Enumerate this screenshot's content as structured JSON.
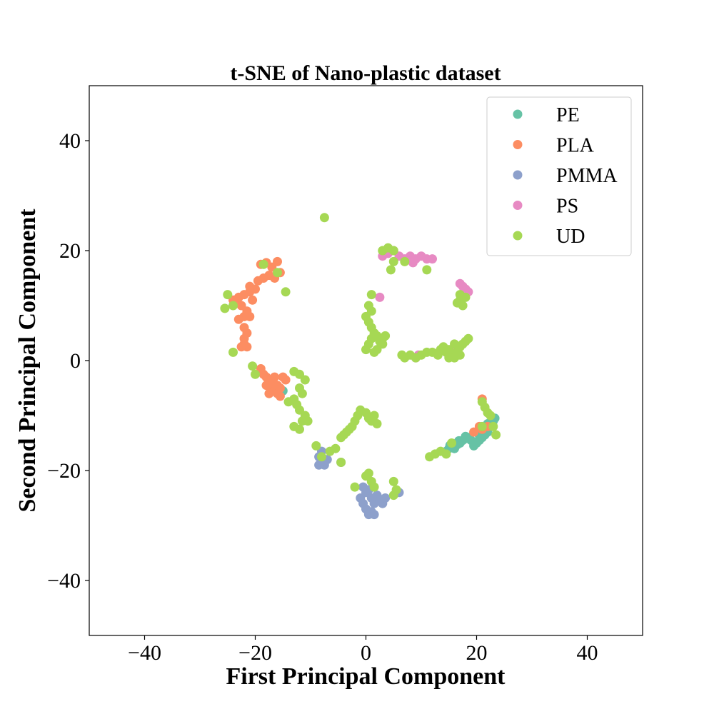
{
  "chart_data": {
    "type": "scatter",
    "title": "t-SNE of Nano-plastic dataset",
    "xlabel": "First Principal Component",
    "ylabel": "Second Principal Component",
    "xlim": [
      -50,
      50
    ],
    "ylim": [
      -50,
      50
    ],
    "xticks": [
      -40,
      -20,
      0,
      20,
      40
    ],
    "yticks": [
      -40,
      -20,
      0,
      20,
      40
    ],
    "grid": false,
    "legend_position": "top-right",
    "series": [
      {
        "name": "PE",
        "color": "#66c2a5",
        "points": [
          [
            15,
            -16
          ],
          [
            15.5,
            -15.8
          ],
          [
            16,
            -15.5
          ],
          [
            16.5,
            -15.3
          ],
          [
            17,
            -15
          ],
          [
            17.5,
            -14.5
          ],
          [
            18,
            -14.2
          ],
          [
            18.5,
            -14
          ],
          [
            19,
            -14.5
          ],
          [
            19.5,
            -14.8
          ],
          [
            20,
            -15
          ],
          [
            20.5,
            -14.5
          ],
          [
            21,
            -14
          ],
          [
            21.5,
            -13.5
          ],
          [
            22,
            -13
          ],
          [
            22.5,
            -12
          ],
          [
            23,
            -11
          ],
          [
            23.3,
            -10.5
          ],
          [
            14.5,
            -16.5
          ],
          [
            16,
            -16
          ],
          [
            17,
            -14.8
          ],
          [
            18,
            -13.8
          ],
          [
            19.5,
            -15.5
          ],
          [
            20.5,
            -13.6
          ],
          [
            15.2,
            -15.4
          ],
          [
            16.8,
            -14.6
          ],
          [
            22,
            -11.5
          ],
          [
            22.8,
            -11.2
          ],
          [
            -15.5,
            -6
          ],
          [
            -16,
            -5
          ],
          [
            -15,
            -5.5
          ]
        ]
      },
      {
        "name": "PLA",
        "color": "#fc8d62",
        "points": [
          [
            -19,
            17.5
          ],
          [
            -18,
            17.8
          ],
          [
            -17,
            17
          ],
          [
            -16,
            18
          ],
          [
            -15.5,
            16
          ],
          [
            -16.5,
            15
          ],
          [
            -17.5,
            15.5
          ],
          [
            -18.5,
            15
          ],
          [
            -19.5,
            14.5
          ],
          [
            -20,
            13
          ],
          [
            -21,
            12.5
          ],
          [
            -22,
            12
          ],
          [
            -23,
            11.5
          ],
          [
            -23.5,
            10.5
          ],
          [
            -24,
            11
          ],
          [
            -22.5,
            10
          ],
          [
            -21.5,
            9
          ],
          [
            -22,
            8
          ],
          [
            -23,
            7.5
          ],
          [
            -21,
            8
          ],
          [
            -22,
            6
          ],
          [
            -21.5,
            5
          ],
          [
            -22,
            4
          ],
          [
            -22,
            3
          ],
          [
            -21.5,
            2.5
          ],
          [
            -22.5,
            2.5
          ],
          [
            -20.5,
            11
          ],
          [
            -21,
            13.5
          ],
          [
            -19,
            -1.5
          ],
          [
            -18.5,
            -2.5
          ],
          [
            -18,
            -3
          ],
          [
            -17.5,
            -4
          ],
          [
            -17,
            -5
          ],
          [
            -16.5,
            -5.5
          ],
          [
            -16,
            -6
          ],
          [
            -15.5,
            -5
          ],
          [
            -17,
            -3.5
          ],
          [
            -16,
            -4.5
          ],
          [
            -15,
            -3
          ],
          [
            -14.5,
            -3.5
          ],
          [
            -18,
            -4.5
          ],
          [
            -17.5,
            -6
          ],
          [
            -16.5,
            -3
          ],
          [
            -15.5,
            -6.5
          ],
          [
            21,
            -7
          ],
          [
            20.5,
            -12
          ],
          [
            21,
            -12.5
          ],
          [
            22,
            -12
          ],
          [
            19.5,
            -13
          ]
        ]
      },
      {
        "name": "PMMA",
        "color": "#8da0cb",
        "points": [
          [
            -8,
            -16.5
          ],
          [
            -8.5,
            -17.5
          ],
          [
            -8,
            -18.5
          ],
          [
            -7.5,
            -19
          ],
          [
            -8.5,
            -19
          ],
          [
            -7,
            -18
          ],
          [
            -4.5,
            -18.5
          ],
          [
            -1,
            -25
          ],
          [
            -0.5,
            -26
          ],
          [
            0,
            -24
          ],
          [
            0.5,
            -23.5
          ],
          [
            1,
            -25
          ],
          [
            1.5,
            -26
          ],
          [
            2,
            -24.5
          ],
          [
            2.5,
            -25.5
          ],
          [
            3,
            -26
          ],
          [
            0,
            -27
          ],
          [
            1,
            -27.5
          ],
          [
            0.5,
            -28
          ],
          [
            1.5,
            -28
          ],
          [
            -0.5,
            -23
          ],
          [
            3.5,
            -25
          ],
          [
            6,
            -24
          ]
        ]
      },
      {
        "name": "PS",
        "color": "#e78ac3",
        "points": [
          [
            3,
            19
          ],
          [
            4,
            19.5
          ],
          [
            5,
            20
          ],
          [
            6,
            19
          ],
          [
            7,
            18.5
          ],
          [
            8,
            19
          ],
          [
            9,
            18.5
          ],
          [
            10,
            19
          ],
          [
            11,
            18.5
          ],
          [
            12,
            18.5
          ],
          [
            8.5,
            17.8
          ],
          [
            17,
            14
          ],
          [
            17.5,
            13.5
          ],
          [
            18,
            13
          ],
          [
            18.5,
            12.5
          ],
          [
            17.5,
            12
          ],
          [
            2.5,
            11.5
          ],
          [
            9,
            0.5
          ],
          [
            9.5,
            1
          ],
          [
            16,
            2
          ]
        ]
      },
      {
        "name": "UD",
        "color": "#a6d854",
        "points": [
          [
            -7.5,
            26
          ],
          [
            -25,
            12
          ],
          [
            -25.5,
            9.5
          ],
          [
            -24,
            10
          ],
          [
            -18.5,
            17.5
          ],
          [
            -16,
            16
          ],
          [
            -14.5,
            12.5
          ],
          [
            -24,
            1.5
          ],
          [
            -20.5,
            -1
          ],
          [
            -20,
            -2.5
          ],
          [
            -13,
            -2
          ],
          [
            -12,
            -2.5
          ],
          [
            -11,
            -3.5
          ],
          [
            -12,
            -5
          ],
          [
            -11.5,
            -6
          ],
          [
            -13,
            -7
          ],
          [
            -12.5,
            -8
          ],
          [
            -12,
            -9
          ],
          [
            -11,
            -10
          ],
          [
            -11.5,
            -11
          ],
          [
            -13,
            -12
          ],
          [
            -12,
            -12.5
          ],
          [
            -14,
            -7.5
          ],
          [
            -10.5,
            -11
          ],
          [
            -9,
            -15.5
          ],
          [
            -8,
            -17.5
          ],
          [
            -6.5,
            -16.5
          ],
          [
            -5.5,
            -16
          ],
          [
            -4.5,
            -14
          ],
          [
            -4,
            -13.5
          ],
          [
            -3.5,
            -13
          ],
          [
            -3,
            -12.5
          ],
          [
            -2.5,
            -12
          ],
          [
            -2,
            -11
          ],
          [
            -1.5,
            -10
          ],
          [
            -1,
            -9
          ],
          [
            0,
            -9.5
          ],
          [
            0.5,
            -10.5
          ],
          [
            1,
            -11
          ],
          [
            1.5,
            -10
          ],
          [
            2,
            -11.5
          ],
          [
            -4.5,
            -18.5
          ],
          [
            -2,
            -23
          ],
          [
            0,
            -21
          ],
          [
            0.5,
            -20.5
          ],
          [
            1,
            -22
          ],
          [
            1.5,
            -23
          ],
          [
            5,
            -22
          ],
          [
            5.5,
            -23.5
          ],
          [
            5,
            -24.5
          ],
          [
            0,
            2
          ],
          [
            0.5,
            3
          ],
          [
            1,
            4
          ],
          [
            1.5,
            5
          ],
          [
            2,
            4.5
          ],
          [
            2.5,
            3.5
          ],
          [
            3,
            4
          ],
          [
            1,
            6
          ],
          [
            0.5,
            7
          ],
          [
            0,
            8
          ],
          [
            1,
            9
          ],
          [
            0.5,
            10
          ],
          [
            1,
            12
          ],
          [
            2,
            2
          ],
          [
            3,
            3
          ],
          [
            3.5,
            4.5
          ],
          [
            1.5,
            1.5
          ],
          [
            3,
            20
          ],
          [
            4,
            20.5
          ],
          [
            5,
            20
          ],
          [
            5,
            18
          ],
          [
            4.5,
            16.5
          ],
          [
            7,
            18
          ],
          [
            11,
            16.5
          ],
          [
            6.5,
            1
          ],
          [
            7,
            0.5
          ],
          [
            8,
            1
          ],
          [
            9,
            0.5
          ],
          [
            10,
            1
          ],
          [
            11,
            1.5
          ],
          [
            12,
            1.5
          ],
          [
            13,
            1
          ],
          [
            13.5,
            2
          ],
          [
            14,
            2.5
          ],
          [
            14.5,
            1.5
          ],
          [
            15,
            2
          ],
          [
            15.5,
            1
          ],
          [
            16,
            0.5
          ],
          [
            16.5,
            1.5
          ],
          [
            17,
            2.5
          ],
          [
            17.5,
            3
          ],
          [
            18,
            3.5
          ],
          [
            18.5,
            4
          ],
          [
            16,
            3
          ],
          [
            17,
            1
          ],
          [
            15,
            0.5
          ],
          [
            16.5,
            10.5
          ],
          [
            17,
            11
          ],
          [
            17.5,
            10
          ],
          [
            18,
            11.5
          ],
          [
            17,
            12
          ],
          [
            11.5,
            -17.5
          ],
          [
            12.5,
            -17
          ],
          [
            13.5,
            -16.5
          ],
          [
            14.5,
            -17
          ],
          [
            15.5,
            -15
          ],
          [
            21,
            -7.5
          ],
          [
            21.5,
            -8.5
          ],
          [
            22,
            -9.5
          ],
          [
            22.5,
            -10
          ],
          [
            23,
            -12
          ],
          [
            23.5,
            -13.5
          ],
          [
            21,
            -12
          ]
        ]
      }
    ]
  }
}
